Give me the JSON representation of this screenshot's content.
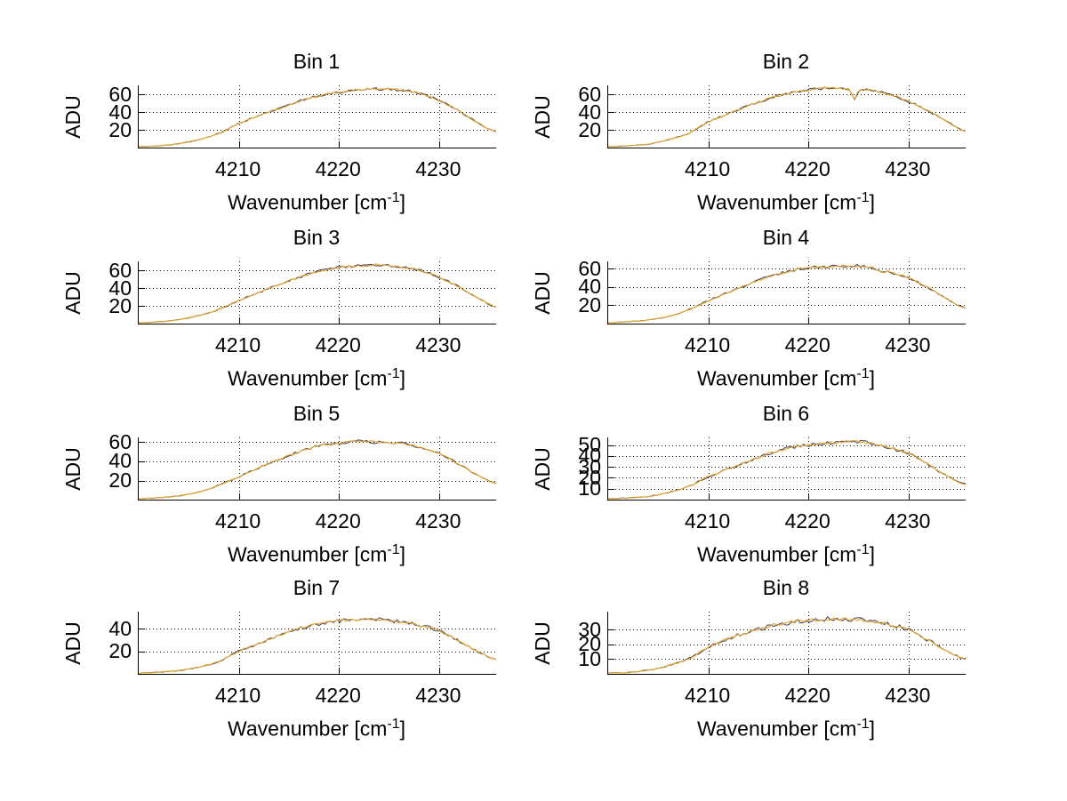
{
  "figure": {
    "background_color": "#ffffff",
    "axis_color": "#000000",
    "text_color": "#000000",
    "grid_style": "dotted",
    "ylabel": "ADU",
    "xlabel_main": "Wavenumber [cm",
    "xlabel_superscript": "-1",
    "xlabel_close": "]",
    "xticks": [
      "4210",
      "4220",
      "4230"
    ],
    "trace_colors": {
      "data": "#3a3a5c",
      "fit": "#e2a42e"
    }
  },
  "chart_data": {
    "type": "line",
    "layout": "4 rows x 2 cols",
    "xlabel": "Wavenumber [cm^-1]",
    "ylabel": "ADU",
    "grid": true,
    "legend": "none",
    "xlim": [
      4200,
      4235.7
    ],
    "xticks": [
      4210,
      4220,
      4230
    ],
    "x": [
      4200,
      4202,
      4204,
      4206,
      4208,
      4210,
      4212,
      4214,
      4216,
      4218,
      4220,
      4222,
      4224,
      4226,
      4228,
      4230,
      4232,
      4234,
      4235.7
    ],
    "subplots": [
      {
        "title": "Bin 1",
        "ylim": [
          0,
          70
        ],
        "yticks": [
          20,
          40,
          60
        ],
        "values": [
          1,
          2,
          4.5,
          9,
          16,
          27,
          36,
          44,
          52,
          58,
          62,
          65,
          66,
          65,
          61,
          53,
          41,
          27,
          18
        ]
      },
      {
        "title": "Bin 2",
        "ylim": [
          0,
          70
        ],
        "yticks": [
          20,
          40,
          60
        ],
        "values": [
          1,
          2,
          4,
          9,
          16,
          29,
          38,
          47,
          55,
          61,
          65,
          67,
          66,
          65,
          60,
          52,
          41,
          28,
          18
        ],
        "dip": {
          "x": 4224.6,
          "value": 54,
          "halfwidth": 0.5
        }
      },
      {
        "title": "Bin 3",
        "ylim": [
          0,
          70
        ],
        "yticks": [
          20,
          40,
          60
        ],
        "values": [
          1,
          2,
          4.5,
          9,
          16,
          26,
          35,
          44,
          52,
          59,
          63,
          65,
          66,
          64,
          60,
          52,
          41,
          28,
          19
        ]
      },
      {
        "title": "Bin 4",
        "ylim": [
          0,
          68
        ],
        "yticks": [
          20,
          40,
          60
        ],
        "values": [
          1,
          2,
          4,
          8,
          15,
          25,
          34,
          43,
          51,
          57,
          61,
          62,
          63,
          62,
          57,
          50,
          39,
          26,
          17
        ],
        "dip": {
          "x": 4227.3,
          "value": 56,
          "halfwidth": 0.9
        }
      },
      {
        "title": "Bin 5",
        "ylim": [
          0,
          65
        ],
        "yticks": [
          20,
          40,
          60
        ],
        "values": [
          1,
          2,
          4,
          8,
          15,
          24,
          33,
          42,
          50,
          56,
          59,
          61,
          60,
          59,
          55,
          48,
          37,
          25,
          17
        ]
      },
      {
        "title": "Bin 6",
        "ylim": [
          0,
          57
        ],
        "yticks": [
          10,
          20,
          30,
          40,
          50
        ],
        "values": [
          1,
          1.5,
          3,
          6.5,
          12,
          21,
          28,
          35,
          42,
          47,
          50,
          52,
          53,
          52,
          48,
          42,
          32,
          21,
          14
        ]
      },
      {
        "title": "Bin 7",
        "ylim": [
          0,
          55
        ],
        "yticks": [
          20,
          40
        ],
        "values": [
          0.5,
          1.5,
          3,
          6,
          11,
          20,
          27,
          34,
          40,
          44,
          47,
          48,
          48,
          46,
          43,
          38,
          29,
          19,
          13
        ]
      },
      {
        "title": "Bin 8",
        "ylim": [
          0,
          42
        ],
        "yticks": [
          10,
          20,
          30
        ],
        "values": [
          0.5,
          1,
          2.5,
          5.5,
          10,
          18,
          24,
          28,
          32,
          34.5,
          36,
          37,
          37,
          36,
          33.5,
          29.5,
          22.5,
          15,
          10
        ]
      }
    ]
  }
}
